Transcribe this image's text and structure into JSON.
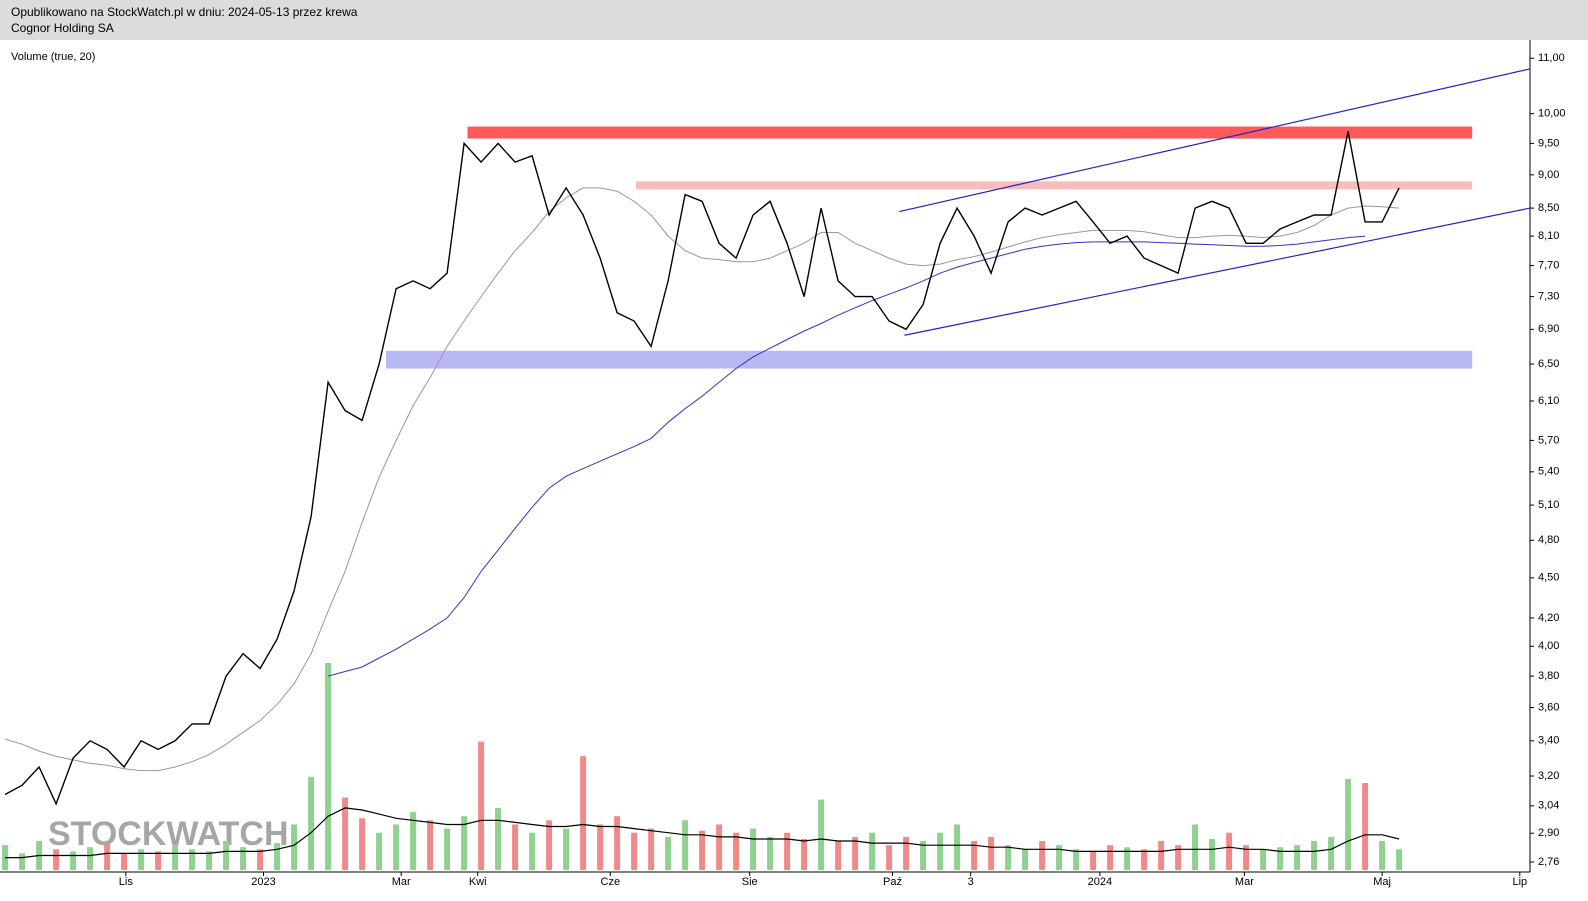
{
  "header": {
    "published": "Opublikowano na StockWatch.pl w dniu: 2024-05-13 przez krewa",
    "name": "Cognor Holding SA"
  },
  "chart_data": {
    "type": "line",
    "title": "Volume (true, 20)",
    "watermark": "STOCKWATCH",
    "log_scale": true,
    "xlim": [
      -0.3,
      89.7
    ],
    "xticks": [
      {
        "value": 7.1,
        "label": "Lis"
      },
      {
        "value": 15.2,
        "label": "2023"
      },
      {
        "value": 23.3,
        "label": "Mar"
      },
      {
        "value": 27.8,
        "label": "Kwi"
      },
      {
        "value": 35.6,
        "label": "Cze"
      },
      {
        "value": 43.8,
        "label": "Sie"
      },
      {
        "value": 52.2,
        "label": "Paź"
      },
      {
        "value": 56.8,
        "label": "3"
      },
      {
        "value": 64.4,
        "label": "2024"
      },
      {
        "value": 72.9,
        "label": "Mar"
      },
      {
        "value": 81,
        "label": "Maj"
      },
      {
        "value": 89.1,
        "label": "Lip"
      }
    ],
    "ylim": [
      2.713,
      11.35
    ],
    "yticks": [
      {
        "value": 2.76,
        "label": "2,76"
      },
      {
        "value": 2.9,
        "label": "2,90"
      },
      {
        "value": 3.04,
        "label": "3,04"
      },
      {
        "value": 3.2,
        "label": "3,20"
      },
      {
        "value": 3.4,
        "label": "3,40"
      },
      {
        "value": 3.6,
        "label": "3,60"
      },
      {
        "value": 3.8,
        "label": "3,80"
      },
      {
        "value": 4.0,
        "label": "4,00"
      },
      {
        "value": 4.2,
        "label": "4,20"
      },
      {
        "value": 4.5,
        "label": "4,50"
      },
      {
        "value": 4.8,
        "label": "4,80"
      },
      {
        "value": 5.1,
        "label": "5,10"
      },
      {
        "value": 5.4,
        "label": "5,40"
      },
      {
        "value": 5.7,
        "label": "5,70"
      },
      {
        "value": 6.1,
        "label": "6,10"
      },
      {
        "value": 6.5,
        "label": "6,50"
      },
      {
        "value": 6.9,
        "label": "6,90"
      },
      {
        "value": 7.3,
        "label": "7,30"
      },
      {
        "value": 7.7,
        "label": "7,70"
      },
      {
        "value": 8.1,
        "label": "8,10"
      },
      {
        "value": 8.5,
        "label": "8,50"
      },
      {
        "value": 9.0,
        "label": "9,00"
      },
      {
        "value": 9.5,
        "label": "9,50"
      },
      {
        "value": 10.0,
        "label": "10,00"
      },
      {
        "value": 11.0,
        "label": "11,00"
      }
    ],
    "series": [
      {
        "color": "#000000",
        "values": [
          3.1,
          3.15,
          3.25,
          3.05,
          3.3,
          3.4,
          3.35,
          3.25,
          3.4,
          3.35,
          3.4,
          3.5,
          3.5,
          3.8,
          3.95,
          3.85,
          4.05,
          4.4,
          5.0,
          6.3,
          6.0,
          5.9,
          6.5,
          7.4,
          7.5,
          7.4,
          7.6,
          9.5,
          9.2,
          9.5,
          9.2,
          9.3,
          8.4,
          8.8,
          8.4,
          7.8,
          7.1,
          7.0,
          6.7,
          7.5,
          8.7,
          8.6,
          8.0,
          7.8,
          8.4,
          8.6,
          8.0,
          7.3,
          8.5,
          7.5,
          7.3,
          7.3,
          7.0,
          6.9,
          7.2,
          8.0,
          8.5,
          8.1,
          7.6,
          8.3,
          8.5,
          8.4,
          8.5,
          8.6,
          8.3,
          8.0,
          8.1,
          7.8,
          7.7,
          7.6,
          8.5,
          8.6,
          8.5,
          8.0,
          8.0,
          8.2,
          8.3,
          8.4,
          8.4,
          9.7,
          8.3,
          8.3,
          8.8
        ]
      },
      {
        "color": "#999999",
        "values": [
          3.41,
          3.38,
          3.34,
          3.31,
          3.29,
          3.27,
          3.26,
          3.24,
          3.23,
          3.23,
          3.25,
          3.28,
          3.32,
          3.38,
          3.45,
          3.52,
          3.62,
          3.75,
          3.95,
          4.25,
          4.55,
          4.95,
          5.35,
          5.7,
          6.05,
          6.35,
          6.7,
          7.0,
          7.3,
          7.6,
          7.9,
          8.15,
          8.45,
          8.65,
          8.8,
          8.8,
          8.75,
          8.6,
          8.4,
          8.1,
          7.9,
          7.8,
          7.78,
          7.75,
          7.75,
          7.8,
          7.9,
          8.0,
          8.15,
          8.15,
          8.0,
          7.9,
          7.8,
          7.72,
          7.7,
          7.72,
          7.78,
          7.82,
          7.88,
          7.95,
          8.02,
          8.08,
          8.12,
          8.15,
          8.18,
          8.18,
          8.18,
          8.16,
          8.12,
          8.08,
          8.08,
          8.1,
          8.11,
          8.1,
          8.08,
          8.1,
          8.15,
          8.25,
          8.4,
          8.5,
          8.53,
          8.52,
          8.5
        ]
      },
      {
        "color": "#3333cc",
        "values": [
          null,
          null,
          null,
          null,
          null,
          null,
          null,
          null,
          null,
          null,
          null,
          null,
          null,
          null,
          null,
          null,
          null,
          null,
          null,
          3.8,
          3.83,
          3.86,
          3.92,
          3.98,
          4.05,
          4.12,
          4.2,
          4.35,
          4.55,
          4.72,
          4.9,
          5.08,
          5.25,
          5.36,
          5.43,
          5.5,
          5.57,
          5.64,
          5.72,
          5.88,
          6.02,
          6.15,
          6.3,
          6.45,
          6.58,
          6.68,
          6.78,
          6.88,
          6.97,
          7.07,
          7.16,
          7.25,
          7.33,
          7.41,
          7.5,
          7.6,
          7.68,
          7.74,
          7.8,
          7.86,
          7.92,
          7.96,
          7.99,
          8.01,
          8.02,
          8.02,
          8.02,
          8.02,
          8.01,
          8.0,
          7.99,
          7.98,
          7.97,
          7.96,
          7.96,
          7.97,
          7.99,
          8.02,
          8.05,
          8.08,
          8.1,
          null,
          null
        ]
      }
    ],
    "bands": [
      {
        "color": "#ff5a5a",
        "xlim": [
          27.2,
          86.3
        ],
        "ylim": [
          9.58,
          9.78
        ]
      },
      {
        "color": "#f7bcbc",
        "xlim": [
          37.1,
          86.3
        ],
        "ylim": [
          8.78,
          8.9
        ]
      },
      {
        "color": "#b8b8f5",
        "xlim": [
          22.4,
          86.3
        ],
        "ylim": [
          6.45,
          6.65
        ]
      }
    ],
    "trendlines": [
      {
        "color": "#2222cc",
        "x": [
          52.6,
          89.7
        ],
        "y": [
          8.45,
          10.8
        ]
      },
      {
        "color": "#2222cc",
        "x": [
          52.9,
          89.7
        ],
        "y": [
          6.83,
          8.5
        ]
      }
    ],
    "volume": {
      "vlim": [
        0,
        100
      ],
      "up_color": "#8fd18f",
      "down_color": "#f08a8a",
      "ma_color": "#000000",
      "values": [
        12,
        8,
        14,
        10,
        9,
        11,
        13,
        8,
        10,
        9,
        12,
        10,
        9,
        14,
        11,
        10,
        13,
        22,
        45,
        100,
        35,
        25,
        18,
        22,
        28,
        24,
        20,
        26,
        62,
        30,
        22,
        18,
        24,
        20,
        55,
        22,
        26,
        18,
        20,
        16,
        24,
        19,
        22,
        18,
        20,
        16,
        18,
        15,
        34,
        14,
        16,
        18,
        12,
        16,
        14,
        18,
        22,
        14,
        16,
        12,
        10,
        14,
        12,
        10,
        9,
        12,
        11,
        10,
        14,
        12,
        22,
        15,
        18,
        12,
        10,
        11,
        12,
        14,
        16,
        44,
        42,
        14,
        10
      ],
      "ma": [
        6,
        6,
        7,
        7,
        7,
        7,
        8,
        8,
        8,
        8,
        8,
        8,
        8,
        9,
        9,
        9,
        10,
        12,
        18,
        26,
        30,
        29,
        27,
        25,
        24,
        23,
        22,
        22,
        24,
        24,
        23,
        22,
        21,
        21,
        22,
        21,
        21,
        20,
        19,
        18,
        17,
        17,
        16,
        16,
        15,
        15,
        15,
        14,
        15,
        14,
        14,
        13,
        13,
        13,
        12,
        12,
        12,
        12,
        11,
        11,
        10,
        10,
        10,
        9,
        9,
        9,
        9,
        9,
        9,
        10,
        10,
        10,
        11,
        10,
        10,
        9,
        9,
        9,
        10,
        14,
        17,
        17,
        15
      ]
    }
  }
}
